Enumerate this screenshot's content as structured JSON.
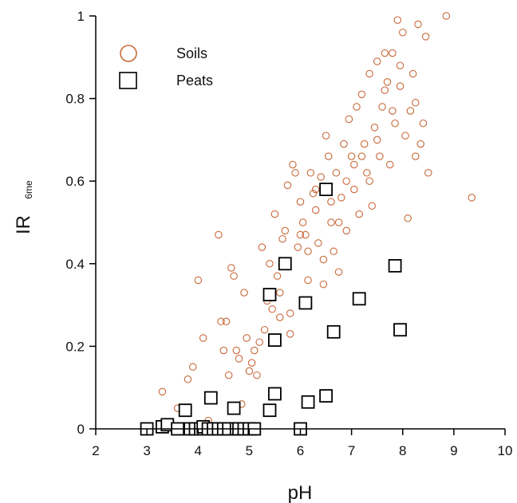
{
  "chart_data": {
    "type": "scatter",
    "xlabel": "pH",
    "ylabel": "IR",
    "ylabel_subscript": "6me",
    "xlim": [
      2,
      10
    ],
    "ylim": [
      0,
      1
    ],
    "xticks": [
      2,
      3,
      4,
      5,
      6,
      7,
      8,
      9,
      10
    ],
    "yticks": [
      0,
      0.2,
      0.4,
      0.6,
      0.8,
      1
    ],
    "yticklabels": [
      "0",
      "0.2",
      "0.4",
      "0.6",
      "0.8",
      "1"
    ],
    "grid": false,
    "legend_position": "top-left",
    "colors": {
      "soils": "#c8693a",
      "peats": "#000000",
      "axis": "#000000"
    },
    "series": [
      {
        "name": "Soils",
        "marker": "circle",
        "points": [
          [
            3.3,
            0.09
          ],
          [
            3.6,
            0.05
          ],
          [
            3.8,
            0.12
          ],
          [
            3.9,
            0.15
          ],
          [
            4.0,
            0.36
          ],
          [
            4.1,
            0.22
          ],
          [
            4.2,
            0.02
          ],
          [
            4.3,
            0.07
          ],
          [
            4.4,
            0.47
          ],
          [
            4.45,
            0.26
          ],
          [
            4.5,
            0.19
          ],
          [
            4.55,
            0.26
          ],
          [
            4.6,
            0.13
          ],
          [
            4.65,
            0.39
          ],
          [
            4.7,
            0.37
          ],
          [
            4.75,
            0.19
          ],
          [
            4.8,
            0.17
          ],
          [
            4.85,
            0.06
          ],
          [
            4.9,
            0.33
          ],
          [
            4.95,
            0.22
          ],
          [
            5.0,
            0.14
          ],
          [
            5.05,
            0.16
          ],
          [
            5.1,
            0.19
          ],
          [
            5.15,
            0.13
          ],
          [
            5.2,
            0.21
          ],
          [
            5.25,
            0.44
          ],
          [
            5.3,
            0.24
          ],
          [
            5.35,
            0.31
          ],
          [
            5.4,
            0.4
          ],
          [
            5.45,
            0.29
          ],
          [
            5.5,
            0.52
          ],
          [
            5.55,
            0.37
          ],
          [
            5.6,
            0.33
          ],
          [
            5.65,
            0.46
          ],
          [
            5.7,
            0.48
          ],
          [
            5.75,
            0.59
          ],
          [
            5.8,
            0.23
          ],
          [
            5.85,
            0.64
          ],
          [
            5.9,
            0.62
          ],
          [
            5.95,
            0.44
          ],
          [
            6.0,
            0.55
          ],
          [
            6.05,
            0.5
          ],
          [
            6.1,
            0.47
          ],
          [
            6.15,
            0.36
          ],
          [
            6.2,
            0.62
          ],
          [
            6.25,
            0.57
          ],
          [
            6.3,
            0.53
          ],
          [
            6.35,
            0.45
          ],
          [
            6.4,
            0.61
          ],
          [
            6.45,
            0.41
          ],
          [
            6.5,
            0.71
          ],
          [
            6.55,
            0.66
          ],
          [
            6.6,
            0.5
          ],
          [
            6.65,
            0.43
          ],
          [
            6.7,
            0.62
          ],
          [
            6.75,
            0.38
          ],
          [
            6.8,
            0.56
          ],
          [
            6.85,
            0.69
          ],
          [
            6.9,
            0.48
          ],
          [
            6.95,
            0.75
          ],
          [
            7.0,
            0.66
          ],
          [
            7.05,
            0.58
          ],
          [
            7.1,
            0.78
          ],
          [
            7.15,
            0.52
          ],
          [
            7.2,
            0.81
          ],
          [
            7.25,
            0.69
          ],
          [
            7.3,
            0.62
          ],
          [
            7.35,
            0.86
          ],
          [
            7.4,
            0.54
          ],
          [
            7.45,
            0.73
          ],
          [
            7.5,
            0.89
          ],
          [
            7.55,
            0.66
          ],
          [
            7.6,
            0.78
          ],
          [
            7.65,
            0.91
          ],
          [
            7.7,
            0.84
          ],
          [
            7.75,
            0.64
          ],
          [
            7.8,
            0.91
          ],
          [
            7.85,
            0.74
          ],
          [
            7.9,
            0.99
          ],
          [
            7.95,
            0.83
          ],
          [
            8.0,
            0.96
          ],
          [
            8.05,
            0.71
          ],
          [
            8.1,
            0.51
          ],
          [
            8.15,
            0.77
          ],
          [
            8.2,
            0.86
          ],
          [
            8.25,
            0.66
          ],
          [
            8.3,
            0.98
          ],
          [
            8.35,
            0.69
          ],
          [
            8.4,
            0.74
          ],
          [
            8.45,
            0.95
          ],
          [
            8.5,
            0.62
          ],
          [
            8.85,
            1.0
          ],
          [
            9.35,
            0.56
          ],
          [
            6.0,
            0.47
          ],
          [
            6.3,
            0.58
          ],
          [
            6.6,
            0.55
          ],
          [
            6.9,
            0.6
          ],
          [
            7.2,
            0.66
          ],
          [
            7.5,
            0.7
          ],
          [
            7.8,
            0.77
          ],
          [
            5.8,
            0.28
          ],
          [
            6.15,
            0.43
          ],
          [
            6.45,
            0.35
          ],
          [
            6.75,
            0.5
          ],
          [
            7.05,
            0.64
          ],
          [
            7.35,
            0.6
          ],
          [
            7.65,
            0.82
          ],
          [
            7.95,
            0.88
          ],
          [
            8.25,
            0.79
          ],
          [
            5.6,
            0.27
          ]
        ]
      },
      {
        "name": "Peats",
        "marker": "square",
        "points": [
          [
            3.0,
            0.0
          ],
          [
            3.3,
            0.005
          ],
          [
            3.4,
            0.01
          ],
          [
            3.6,
            0.0
          ],
          [
            3.75,
            0.045
          ],
          [
            3.85,
            0.0
          ],
          [
            3.95,
            0.0
          ],
          [
            4.05,
            0.0
          ],
          [
            4.1,
            0.005
          ],
          [
            4.2,
            0.0
          ],
          [
            4.25,
            0.075
          ],
          [
            4.3,
            0.0
          ],
          [
            4.4,
            0.0
          ],
          [
            4.5,
            0.0
          ],
          [
            4.6,
            0.0
          ],
          [
            4.7,
            0.05
          ],
          [
            4.75,
            0.0
          ],
          [
            4.8,
            0.0
          ],
          [
            4.9,
            0.0
          ],
          [
            5.0,
            0.0
          ],
          [
            5.1,
            0.0
          ],
          [
            5.4,
            0.045
          ],
          [
            5.4,
            0.325
          ],
          [
            5.5,
            0.085
          ],
          [
            5.5,
            0.215
          ],
          [
            5.7,
            0.4
          ],
          [
            6.0,
            0.0
          ],
          [
            6.1,
            0.305
          ],
          [
            6.15,
            0.065
          ],
          [
            6.5,
            0.58
          ],
          [
            6.5,
            0.08
          ],
          [
            6.65,
            0.235
          ],
          [
            7.15,
            0.315
          ],
          [
            7.85,
            0.395
          ],
          [
            7.95,
            0.24
          ]
        ]
      }
    ]
  }
}
